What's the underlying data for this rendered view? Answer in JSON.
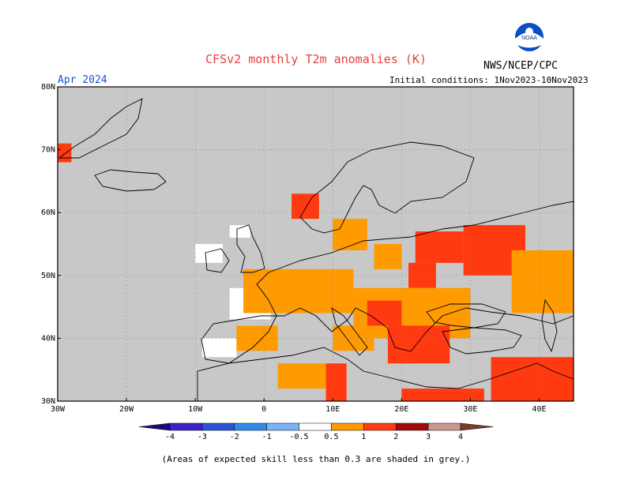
{
  "header": {
    "title": "CFSv2 monthly T2m anomalies (K)",
    "agency": "NWS/NCEP/CPC",
    "logo_text": "NOAA",
    "month": "Apr 2024",
    "initial_conditions": "Initial conditions: 1Nov2023-10Nov2023"
  },
  "map": {
    "lon_range": [
      -30,
      45
    ],
    "lat_range": [
      30,
      80
    ],
    "lat_ticks": [
      {
        "value": 30,
        "label": "30N"
      },
      {
        "value": 40,
        "label": "40N"
      },
      {
        "value": 50,
        "label": "50N"
      },
      {
        "value": 60,
        "label": "60N"
      },
      {
        "value": 70,
        "label": "70N"
      },
      {
        "value": 80,
        "label": "80N"
      }
    ],
    "lon_ticks": [
      {
        "value": -30,
        "label": "30W"
      },
      {
        "value": -20,
        "label": "20W"
      },
      {
        "value": -10,
        "label": "10W"
      },
      {
        "value": 0,
        "label": "0"
      },
      {
        "value": 10,
        "label": "10E"
      },
      {
        "value": 20,
        "label": "20E"
      },
      {
        "value": 30,
        "label": "30E"
      },
      {
        "value": 40,
        "label": "40E"
      }
    ],
    "grid": true,
    "background_color": "#c8c8c8",
    "anomaly_regions": [
      {
        "lon": [
          29,
          38
        ],
        "lat": [
          50,
          58
        ],
        "level": "1-2"
      },
      {
        "lon": [
          22,
          29
        ],
        "lat": [
          52,
          57
        ],
        "level": "1-2"
      },
      {
        "lon": [
          21,
          25
        ],
        "lat": [
          48,
          52
        ],
        "level": "1-2"
      },
      {
        "lon": [
          36,
          45
        ],
        "lat": [
          44,
          54
        ],
        "level": "0.5-1"
      },
      {
        "lon": [
          -3,
          13
        ],
        "lat": [
          44,
          51
        ],
        "level": "0.5-1"
      },
      {
        "lon": [
          13,
          30
        ],
        "lat": [
          40,
          48
        ],
        "level": "0.5-1"
      },
      {
        "lon": [
          18,
          27
        ],
        "lat": [
          36,
          42
        ],
        "level": "1-2"
      },
      {
        "lon": [
          15,
          20
        ],
        "lat": [
          42,
          46
        ],
        "level": "1-2"
      },
      {
        "lon": [
          33,
          45
        ],
        "lat": [
          30,
          37
        ],
        "level": "1-2"
      },
      {
        "lon": [
          9,
          12
        ],
        "lat": [
          30,
          36
        ],
        "level": "1-2"
      },
      {
        "lon": [
          20,
          32
        ],
        "lat": [
          30,
          32
        ],
        "level": "1-2"
      },
      {
        "lon": [
          16,
          20
        ],
        "lat": [
          51,
          55
        ],
        "level": "0.5-1"
      },
      {
        "lon": [
          10,
          15
        ],
        "lat": [
          54,
          59
        ],
        "level": "0.5-1"
      },
      {
        "lon": [
          4,
          8
        ],
        "lat": [
          59,
          63
        ],
        "level": "1-2"
      },
      {
        "lon": [
          -30,
          -28
        ],
        "lat": [
          68,
          71
        ],
        "level": "1-2"
      },
      {
        "lon": [
          -4,
          2
        ],
        "lat": [
          38,
          42
        ],
        "level": "0.5-1"
      },
      {
        "lon": [
          10,
          16
        ],
        "lat": [
          38,
          42
        ],
        "level": "0.5-1"
      },
      {
        "lon": [
          2,
          9
        ],
        "lat": [
          32,
          36
        ],
        "level": "0.5-1"
      }
    ],
    "white_regions": [
      {
        "lon": [
          -5,
          1
        ],
        "lat": [
          43,
          48
        ]
      },
      {
        "lon": [
          -9,
          -4
        ],
        "lat": [
          37,
          40
        ]
      },
      {
        "lon": [
          -10,
          -6
        ],
        "lat": [
          52,
          55
        ]
      },
      {
        "lon": [
          -5,
          -2
        ],
        "lat": [
          56,
          58
        ]
      }
    ]
  },
  "colorbar": {
    "bins": [
      {
        "from": "-4",
        "to": "-3",
        "color": "#3c22c8"
      },
      {
        "from": "-3",
        "to": "-2",
        "color": "#2a54d8"
      },
      {
        "from": "-2",
        "to": "-1",
        "color": "#2f8ce8"
      },
      {
        "from": "-1",
        "to": "-0.5",
        "color": "#78b4f6"
      },
      {
        "from": "-0.5",
        "to": "0.5",
        "color": "#ffffff"
      },
      {
        "from": "0.5",
        "to": "1",
        "color": "#ff9a00"
      },
      {
        "from": "1",
        "to": "2",
        "color": "#ff3a10"
      },
      {
        "from": "2",
        "to": "3",
        "color": "#a00a0a"
      },
      {
        "from": "3",
        "to": "4",
        "color": "#c89890"
      }
    ],
    "low_end_color": "#1e0a78",
    "high_end_color": "#7a3c28",
    "labels": [
      "-4",
      "-3",
      "-2",
      "-1",
      "-0.5",
      "0.5",
      "1",
      "2",
      "3",
      "4"
    ]
  },
  "footnote": "(Areas of expected skill less than 0.3 are shaded in grey.)"
}
